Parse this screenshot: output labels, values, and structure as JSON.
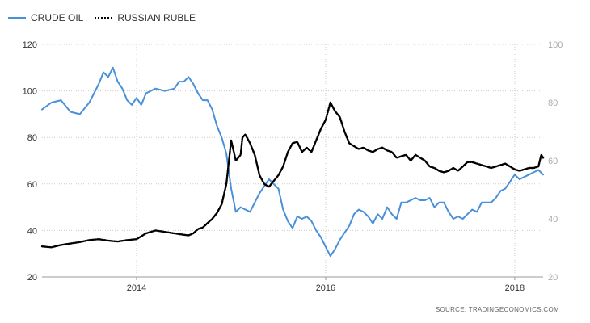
{
  "legend": {
    "oil_label": "CRUDE OIL",
    "ruble_label": "RUSSIAN RUBLE"
  },
  "source": "SOURCE: TRADINGECONOMICS.COM",
  "chart_data": {
    "type": "line",
    "x_ticks": [
      "2014",
      "2016",
      "2018"
    ],
    "x_tick_values": [
      2014.0,
      2016.0,
      2018.0
    ],
    "xlim": [
      2013.0,
      2018.3
    ],
    "left_axis": {
      "ylim": [
        20,
        120
      ],
      "ticks": [
        20,
        40,
        60,
        80,
        100,
        120
      ]
    },
    "right_axis": {
      "ylim": [
        20,
        100
      ],
      "ticks": [
        20,
        40,
        60,
        80,
        100
      ]
    },
    "grid": true,
    "legend_position": "top-left",
    "series": [
      {
        "name": "CRUDE OIL",
        "axis": "left",
        "color": "#4a90d9",
        "style": "solid",
        "points": [
          [
            2013.0,
            92
          ],
          [
            2013.1,
            95
          ],
          [
            2013.2,
            96
          ],
          [
            2013.3,
            91
          ],
          [
            2013.4,
            90
          ],
          [
            2013.5,
            95
          ],
          [
            2013.6,
            103
          ],
          [
            2013.65,
            108
          ],
          [
            2013.7,
            106
          ],
          [
            2013.75,
            110
          ],
          [
            2013.8,
            104
          ],
          [
            2013.85,
            101
          ],
          [
            2013.9,
            96
          ],
          [
            2013.95,
            94
          ],
          [
            2014.0,
            97
          ],
          [
            2014.05,
            94
          ],
          [
            2014.1,
            99
          ],
          [
            2014.2,
            101
          ],
          [
            2014.3,
            100
          ],
          [
            2014.4,
            101
          ],
          [
            2014.45,
            104
          ],
          [
            2014.5,
            104
          ],
          [
            2014.55,
            106
          ],
          [
            2014.6,
            103
          ],
          [
            2014.65,
            99
          ],
          [
            2014.7,
            96
          ],
          [
            2014.75,
            96
          ],
          [
            2014.8,
            92
          ],
          [
            2014.85,
            85
          ],
          [
            2014.9,
            80
          ],
          [
            2014.95,
            73
          ],
          [
            2015.0,
            58
          ],
          [
            2015.05,
            48
          ],
          [
            2015.1,
            50
          ],
          [
            2015.15,
            49
          ],
          [
            2015.2,
            48
          ],
          [
            2015.25,
            52
          ],
          [
            2015.3,
            56
          ],
          [
            2015.35,
            59
          ],
          [
            2015.4,
            62
          ],
          [
            2015.45,
            60
          ],
          [
            2015.5,
            58
          ],
          [
            2015.55,
            49
          ],
          [
            2015.6,
            44
          ],
          [
            2015.65,
            41
          ],
          [
            2015.7,
            46
          ],
          [
            2015.75,
            45
          ],
          [
            2015.8,
            46
          ],
          [
            2015.85,
            44
          ],
          [
            2015.9,
            40
          ],
          [
            2015.95,
            37
          ],
          [
            2016.0,
            33
          ],
          [
            2016.05,
            29
          ],
          [
            2016.1,
            32
          ],
          [
            2016.15,
            36
          ],
          [
            2016.2,
            39
          ],
          [
            2016.25,
            42
          ],
          [
            2016.3,
            47
          ],
          [
            2016.35,
            49
          ],
          [
            2016.4,
            48
          ],
          [
            2016.45,
            46
          ],
          [
            2016.5,
            43
          ],
          [
            2016.55,
            47
          ],
          [
            2016.6,
            45
          ],
          [
            2016.65,
            50
          ],
          [
            2016.7,
            47
          ],
          [
            2016.75,
            45
          ],
          [
            2016.8,
            52
          ],
          [
            2016.85,
            52
          ],
          [
            2016.9,
            53
          ],
          [
            2016.95,
            54
          ],
          [
            2017.0,
            53
          ],
          [
            2017.05,
            53
          ],
          [
            2017.1,
            54
          ],
          [
            2017.15,
            50
          ],
          [
            2017.2,
            52
          ],
          [
            2017.25,
            52
          ],
          [
            2017.3,
            48
          ],
          [
            2017.35,
            45
          ],
          [
            2017.4,
            46
          ],
          [
            2017.45,
            45
          ],
          [
            2017.5,
            47
          ],
          [
            2017.55,
            49
          ],
          [
            2017.6,
            48
          ],
          [
            2017.65,
            52
          ],
          [
            2017.7,
            52
          ],
          [
            2017.75,
            52
          ],
          [
            2017.8,
            54
          ],
          [
            2017.85,
            57
          ],
          [
            2017.9,
            58
          ],
          [
            2017.95,
            61
          ],
          [
            2018.0,
            64
          ],
          [
            2018.05,
            62
          ],
          [
            2018.1,
            63
          ],
          [
            2018.15,
            64
          ],
          [
            2018.2,
            65
          ],
          [
            2018.25,
            66
          ],
          [
            2018.3,
            64
          ]
        ]
      },
      {
        "name": "RUSSIAN RUBLE",
        "axis": "right",
        "color": "#000000",
        "style": "dotted",
        "points": [
          [
            2013.0,
            30.5
          ],
          [
            2013.1,
            30.2
          ],
          [
            2013.2,
            31.0
          ],
          [
            2013.3,
            31.5
          ],
          [
            2013.4,
            32.0
          ],
          [
            2013.5,
            32.7
          ],
          [
            2013.6,
            33.0
          ],
          [
            2013.7,
            32.5
          ],
          [
            2013.8,
            32.2
          ],
          [
            2013.9,
            32.7
          ],
          [
            2014.0,
            33.0
          ],
          [
            2014.1,
            35.0
          ],
          [
            2014.2,
            36.0
          ],
          [
            2014.3,
            35.5
          ],
          [
            2014.4,
            35.0
          ],
          [
            2014.5,
            34.5
          ],
          [
            2014.55,
            34.3
          ],
          [
            2014.6,
            35.0
          ],
          [
            2014.65,
            36.5
          ],
          [
            2014.7,
            37.0
          ],
          [
            2014.75,
            38.5
          ],
          [
            2014.8,
            40.0
          ],
          [
            2014.85,
            42.0
          ],
          [
            2014.9,
            45.0
          ],
          [
            2014.95,
            52.0
          ],
          [
            2015.0,
            67.0
          ],
          [
            2015.05,
            60.0
          ],
          [
            2015.1,
            62.0
          ],
          [
            2015.12,
            68.0
          ],
          [
            2015.15,
            69.0
          ],
          [
            2015.2,
            66.0
          ],
          [
            2015.25,
            62.0
          ],
          [
            2015.3,
            55.0
          ],
          [
            2015.35,
            52.0
          ],
          [
            2015.4,
            51.0
          ],
          [
            2015.45,
            53.0
          ],
          [
            2015.5,
            55.0
          ],
          [
            2015.55,
            58.0
          ],
          [
            2015.6,
            63.0
          ],
          [
            2015.65,
            66.0
          ],
          [
            2015.7,
            66.5
          ],
          [
            2015.75,
            63.0
          ],
          [
            2015.8,
            64.5
          ],
          [
            2015.85,
            63.0
          ],
          [
            2015.9,
            67.0
          ],
          [
            2015.95,
            71.0
          ],
          [
            2016.0,
            74.0
          ],
          [
            2016.05,
            80.0
          ],
          [
            2016.1,
            77.0
          ],
          [
            2016.15,
            75.0
          ],
          [
            2016.2,
            70.0
          ],
          [
            2016.25,
            66.0
          ],
          [
            2016.3,
            65.0
          ],
          [
            2016.35,
            64.0
          ],
          [
            2016.4,
            64.5
          ],
          [
            2016.45,
            63.5
          ],
          [
            2016.5,
            63.0
          ],
          [
            2016.55,
            64.0
          ],
          [
            2016.6,
            64.5
          ],
          [
            2016.65,
            63.5
          ],
          [
            2016.7,
            63.0
          ],
          [
            2016.75,
            61.0
          ],
          [
            2016.8,
            61.5
          ],
          [
            2016.85,
            62.0
          ],
          [
            2016.9,
            60.0
          ],
          [
            2016.95,
            62.0
          ],
          [
            2017.0,
            61.0
          ],
          [
            2017.05,
            60.0
          ],
          [
            2017.1,
            58.0
          ],
          [
            2017.15,
            57.5
          ],
          [
            2017.2,
            56.5
          ],
          [
            2017.25,
            56.0
          ],
          [
            2017.3,
            56.5
          ],
          [
            2017.35,
            57.5
          ],
          [
            2017.4,
            56.5
          ],
          [
            2017.45,
            58.0
          ],
          [
            2017.5,
            59.5
          ],
          [
            2017.55,
            59.5
          ],
          [
            2017.6,
            59.0
          ],
          [
            2017.65,
            58.5
          ],
          [
            2017.7,
            58.0
          ],
          [
            2017.75,
            57.5
          ],
          [
            2017.8,
            58.0
          ],
          [
            2017.85,
            58.5
          ],
          [
            2017.9,
            59.0
          ],
          [
            2017.95,
            58.0
          ],
          [
            2018.0,
            57.0
          ],
          [
            2018.05,
            56.5
          ],
          [
            2018.1,
            57.0
          ],
          [
            2018.15,
            57.5
          ],
          [
            2018.2,
            57.5
          ],
          [
            2018.25,
            58.0
          ],
          [
            2018.28,
            62.0
          ],
          [
            2018.3,
            61.0
          ]
        ]
      }
    ]
  }
}
